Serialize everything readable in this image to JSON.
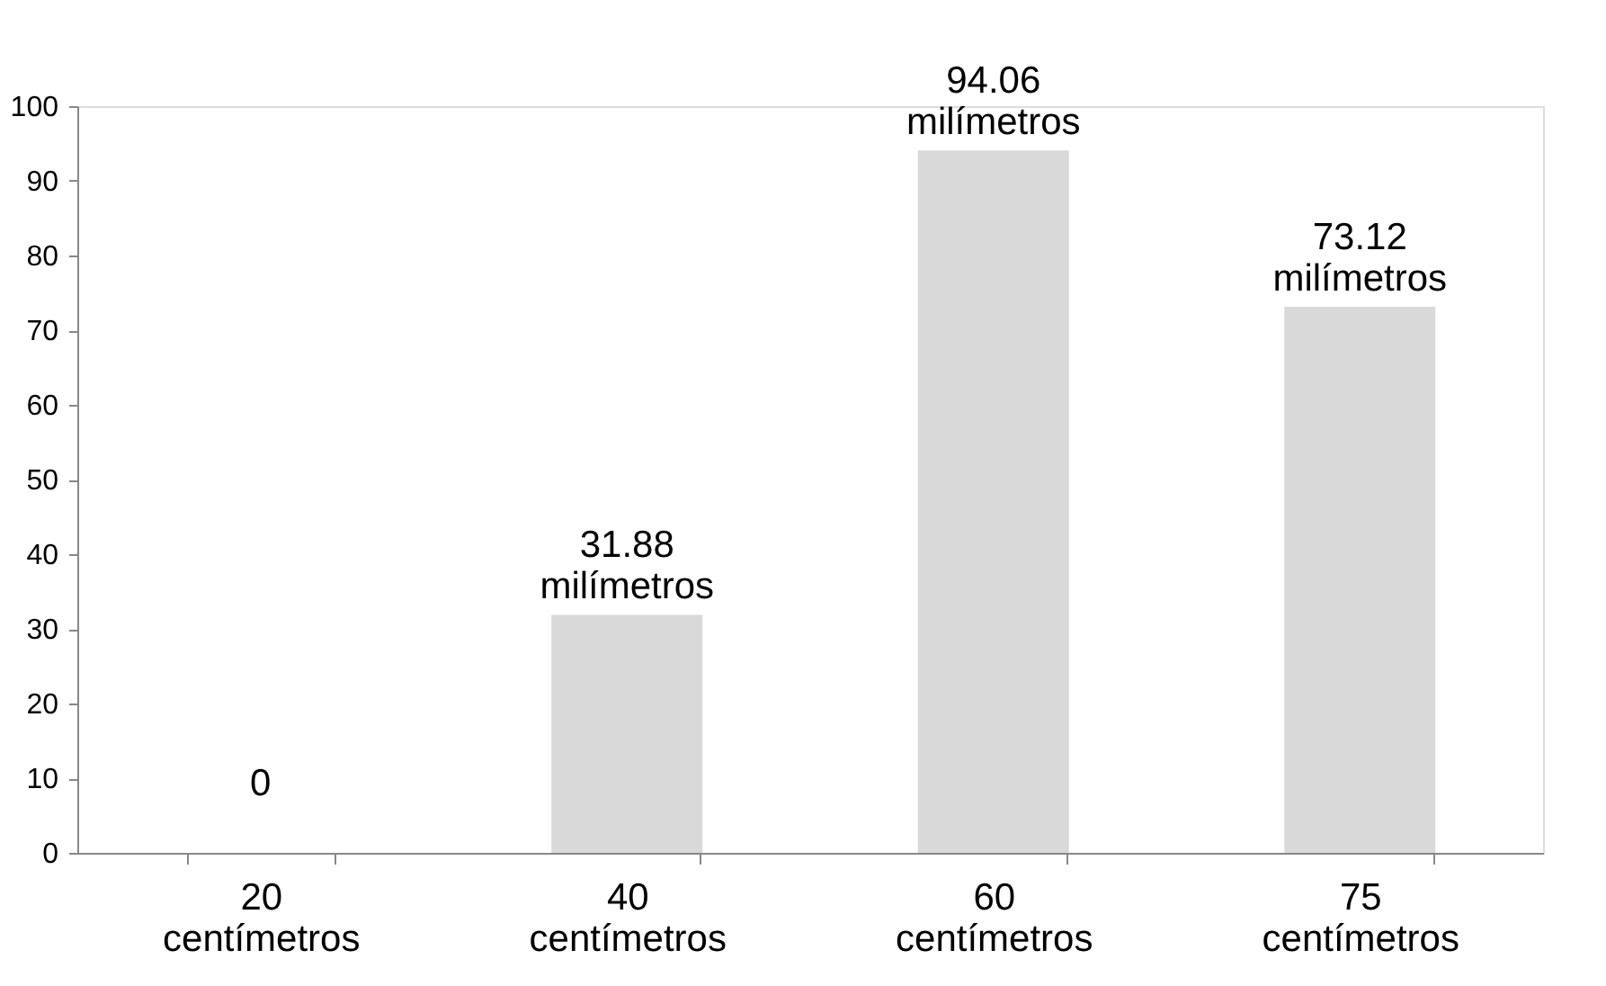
{
  "chart_data": {
    "type": "bar",
    "categories": [
      "20\ncentímetros",
      "40\ncentímetros",
      "60\ncentímetros",
      "75\ncentímetros"
    ],
    "values": [
      0,
      31.88,
      94.06,
      73.12
    ],
    "value_labels": [
      "0",
      "31.88\nmilímetros",
      "94.06\nmilímetros",
      "73.12\nmilímetros"
    ],
    "color": "#d9d9d9",
    "ylim": [
      0,
      100
    ],
    "yticks": [
      0,
      10,
      20,
      30,
      40,
      50,
      60,
      70,
      80,
      90,
      100
    ],
    "grid": false
  }
}
